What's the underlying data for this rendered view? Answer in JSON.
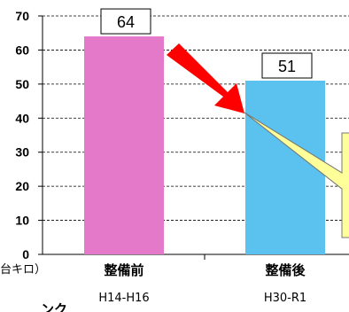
{
  "chart_data": {
    "type": "bar",
    "categories": [
      "整備前",
      "整備後"
    ],
    "category_sublabels": [
      "H14-H16",
      "H30-R1"
    ],
    "values": [
      64,
      51
    ],
    "ylim": [
      0,
      70
    ],
    "yticks": [
      0,
      10,
      20,
      30,
      40,
      50,
      60,
      70
    ],
    "y_unit_fragment": "台キロ）",
    "bar_colors": [
      "#e479c9",
      "#5bc2ef"
    ],
    "data_labels": [
      "64",
      "51"
    ],
    "arrow_color": "#ff0000",
    "callout_color": "#ffff99",
    "grid": true,
    "grid_style": "dashed",
    "bottom_text_fragment": "ンク"
  }
}
